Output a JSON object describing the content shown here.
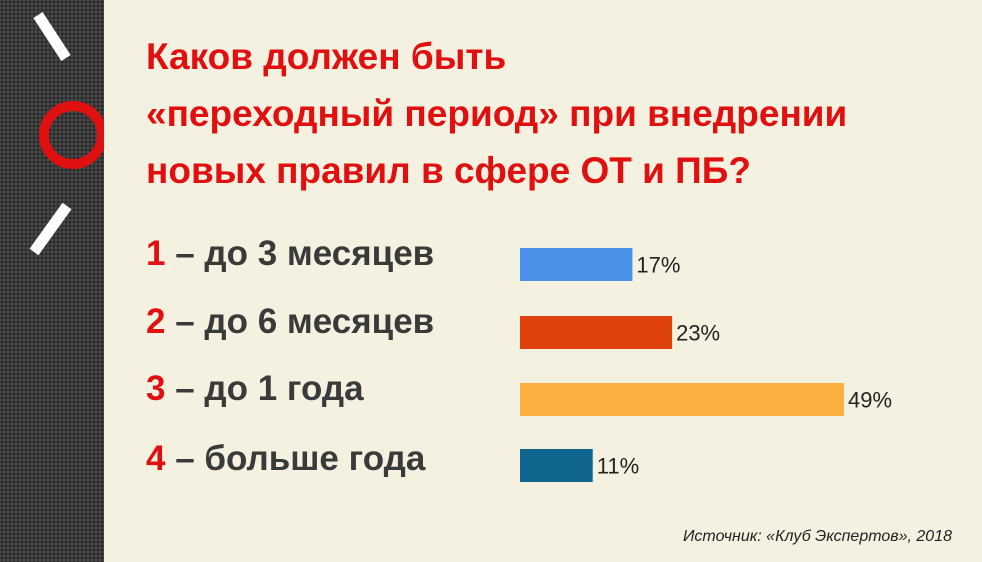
{
  "title_lines": [
    "Каков должен быть",
    "«переходный период» при внедрении",
    "новых правил в сфере ОТ и ПБ?"
  ],
  "options": [
    {
      "num": "1",
      "text": " – до 3 месяцев"
    },
    {
      "num": "2",
      "text": " – до 6 месяцев"
    },
    {
      "num": "3",
      "text": " – до 1 года"
    },
    {
      "num": "4",
      "text": " – больше года"
    }
  ],
  "source": "Источник: «Клуб Экспертов», 2018",
  "colors": {
    "accent": "#e01010",
    "sidebar": "#3d3d3d",
    "background": "#f5f1e1"
  },
  "chart_data": {
    "type": "bar",
    "orientation": "horizontal",
    "categories": [
      "1",
      "2",
      "3",
      "4"
    ],
    "values": [
      17,
      23,
      49,
      11
    ],
    "value_labels": [
      "17%",
      "23%",
      "49%",
      "11%"
    ],
    "colors": [
      "#4a90e8",
      "#e0420e",
      "#fbb03f",
      "#11668f"
    ],
    "unit": "%",
    "xlim": [
      0,
      49
    ],
    "grid": false,
    "legend": "none"
  }
}
